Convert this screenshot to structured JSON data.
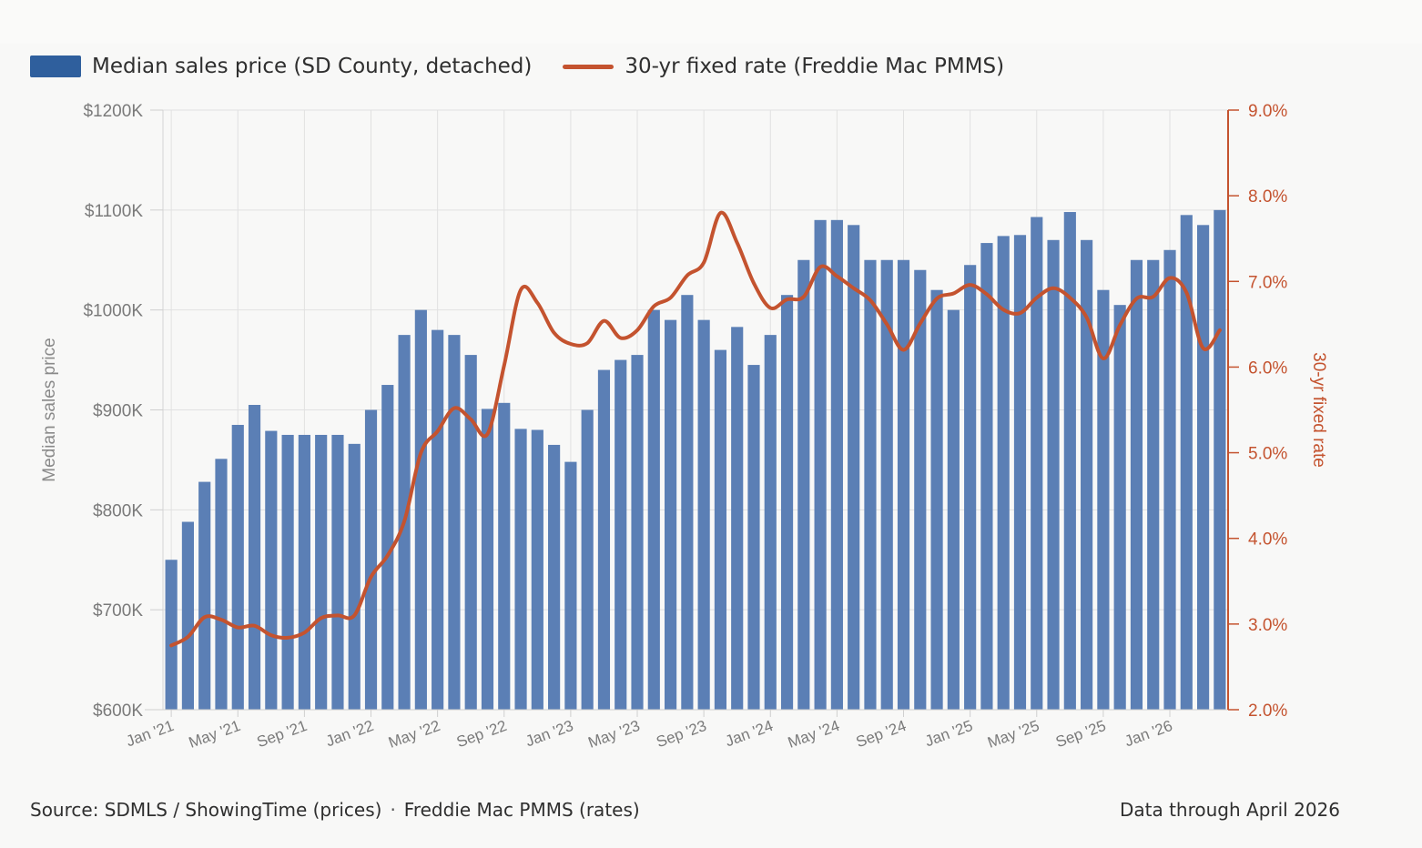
{
  "legend": {
    "bars_label": "Median sales price (SD County, detached)",
    "line_label": "30-yr fixed rate (Freddie Mac PMMS)"
  },
  "footer": {
    "source_prices": "Source: SDMLS / ShowingTime (prices)",
    "separator": "·",
    "source_rates": "Freddie Mac PMMS (rates)",
    "data_through": "Data through April 2026"
  },
  "colors": {
    "bar": "#5b7fb5",
    "bar_legend": "#2f5f9d",
    "line": "#c4532f",
    "left_axis_text": "#7a7a7a",
    "right_axis_text": "#c4532f",
    "grid": "#e1e1e1"
  },
  "chart_data": {
    "type": "bar+line",
    "grid": true,
    "legend_position": "top-left",
    "x_tick_labels": [
      "Jan '21",
      "May '21",
      "Sep '21",
      "Jan '22",
      "May '22",
      "Sep '22",
      "Jan '23",
      "May '23",
      "Sep '23",
      "Jan '24",
      "May '24",
      "Sep '24",
      "Jan '25",
      "May '25",
      "Sep '25",
      "Jan '26"
    ],
    "y_left": {
      "label": "Median sales price",
      "range": [
        600,
        1200
      ],
      "ticks": [
        600,
        700,
        800,
        900,
        1000,
        1100,
        1200
      ],
      "tick_labels": [
        "$600K",
        "$700K",
        "$800K",
        "$900K",
        "$1000K",
        "$1100K",
        "$1200K"
      ]
    },
    "y_right": {
      "label": "30-yr fixed rate",
      "range": [
        2.0,
        9.0
      ],
      "ticks": [
        2,
        3,
        4,
        5,
        6,
        7,
        8,
        9
      ],
      "tick_labels": [
        "2.0%",
        "3.0%",
        "4.0%",
        "5.0%",
        "6.0%",
        "7.0%",
        "8.0%",
        "9.0%"
      ]
    },
    "categories": [
      "Jan '21",
      "Feb '21",
      "Mar '21",
      "Apr '21",
      "May '21",
      "Jun '21",
      "Jul '21",
      "Aug '21",
      "Sep '21",
      "Oct '21",
      "Nov '21",
      "Dec '21",
      "Jan '22",
      "Feb '22",
      "Mar '22",
      "Apr '22",
      "May '22",
      "Jun '22",
      "Jul '22",
      "Aug '22",
      "Sep '22",
      "Oct '22",
      "Nov '22",
      "Dec '22",
      "Jan '23",
      "Feb '23",
      "Mar '23",
      "Apr '23",
      "May '23",
      "Jun '23",
      "Jul '23",
      "Aug '23",
      "Sep '23",
      "Oct '23",
      "Nov '23",
      "Dec '23",
      "Jan '24",
      "Feb '24",
      "Mar '24",
      "Apr '24",
      "May '24",
      "Jun '24",
      "Jul '24",
      "Aug '24",
      "Sep '24",
      "Oct '24",
      "Nov '24",
      "Dec '24",
      "Jan '25",
      "Feb '25",
      "Mar '25",
      "Apr '25",
      "May '25",
      "Jun '25",
      "Jul '25",
      "Aug '25",
      "Sep '25",
      "Oct '25",
      "Nov '25",
      "Dec '25",
      "Jan '26",
      "Feb '26",
      "Mar '26",
      "Apr '26"
    ],
    "series": [
      {
        "name": "Median sales price (SD County, detached)",
        "type": "bar",
        "axis": "left",
        "values": [
          750,
          788,
          828,
          851,
          885,
          905,
          879,
          875,
          875,
          875,
          875,
          866,
          900,
          925,
          975,
          1000,
          980,
          975,
          955,
          901,
          907,
          881,
          880,
          865,
          848,
          900,
          940,
          950,
          955,
          1000,
          990,
          1015,
          990,
          960,
          983,
          945,
          975,
          1015,
          1050,
          1090,
          1090,
          1085,
          1050,
          1050,
          1050,
          1040,
          1020,
          1000,
          1045,
          1067,
          1074,
          1075,
          1093,
          1070,
          1098,
          1070,
          1020,
          1005,
          1050,
          1050,
          1060,
          1095,
          1085,
          1100
        ]
      },
      {
        "name": "30-yr fixed rate (Freddie Mac PMMS)",
        "type": "line",
        "axis": "right",
        "values": [
          2.75,
          2.85,
          3.08,
          3.05,
          2.96,
          2.98,
          2.87,
          2.84,
          2.9,
          3.07,
          3.1,
          3.1,
          3.55,
          3.8,
          4.2,
          5.0,
          5.25,
          5.52,
          5.39,
          5.22,
          6.02,
          6.9,
          6.75,
          6.4,
          6.27,
          6.28,
          6.54,
          6.34,
          6.43,
          6.71,
          6.81,
          7.07,
          7.22,
          7.8,
          7.45,
          6.98,
          6.69,
          6.79,
          6.82,
          7.17,
          7.06,
          6.92,
          6.78,
          6.5,
          6.2,
          6.51,
          6.8,
          6.86,
          6.96,
          6.85,
          6.67,
          6.63,
          6.81,
          6.92,
          6.81,
          6.58,
          6.1,
          6.49,
          6.8,
          6.82,
          7.04,
          6.87,
          6.22,
          6.43
        ]
      }
    ]
  }
}
